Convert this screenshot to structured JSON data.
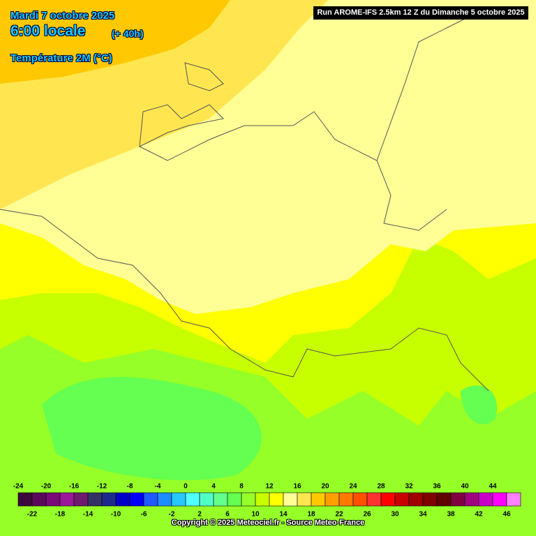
{
  "header": {
    "date": "Mardi 7 octobre 2025",
    "time": "6:00 locale",
    "lead": "(+ 40h)",
    "variable": "Température 2M (°C)",
    "run": "Run AROME-IFS 2.5km 12 Z du Dimanche 5 octobre 2025"
  },
  "legend": {
    "labels": [
      -24,
      -22,
      -20,
      -18,
      -16,
      -14,
      -12,
      -10,
      -8,
      -6,
      -4,
      -2,
      0,
      2,
      4,
      6,
      8,
      10,
      12,
      14,
      16,
      18,
      20,
      22,
      24,
      26,
      28,
      30,
      32,
      34,
      36,
      38,
      40,
      42,
      44,
      46
    ],
    "colors": [
      "#3c0a3c",
      "#5a0a5a",
      "#7a0a7a",
      "#9b189b",
      "#6e1a6e",
      "#333366",
      "#1c2a8c",
      "#0000c8",
      "#0000ff",
      "#1e5aff",
      "#1e8cff",
      "#28c8ff",
      "#50ffff",
      "#50ffc8",
      "#64ff8c",
      "#64ff50",
      "#96ff28",
      "#c8ff00",
      "#ffff00",
      "#ffff96",
      "#ffe650",
      "#ffc800",
      "#ffa000",
      "#ff7800",
      "#ff5000",
      "#ff3232",
      "#ff0000",
      "#c80000",
      "#a00000",
      "#800000",
      "#600000",
      "#800040",
      "#a00080",
      "#c800c8",
      "#ff00ff",
      "#ff80ff"
    ]
  },
  "footer": {
    "copyright": "Copyright © 2025 Meteociel.fr - Source Meteo-France"
  }
}
